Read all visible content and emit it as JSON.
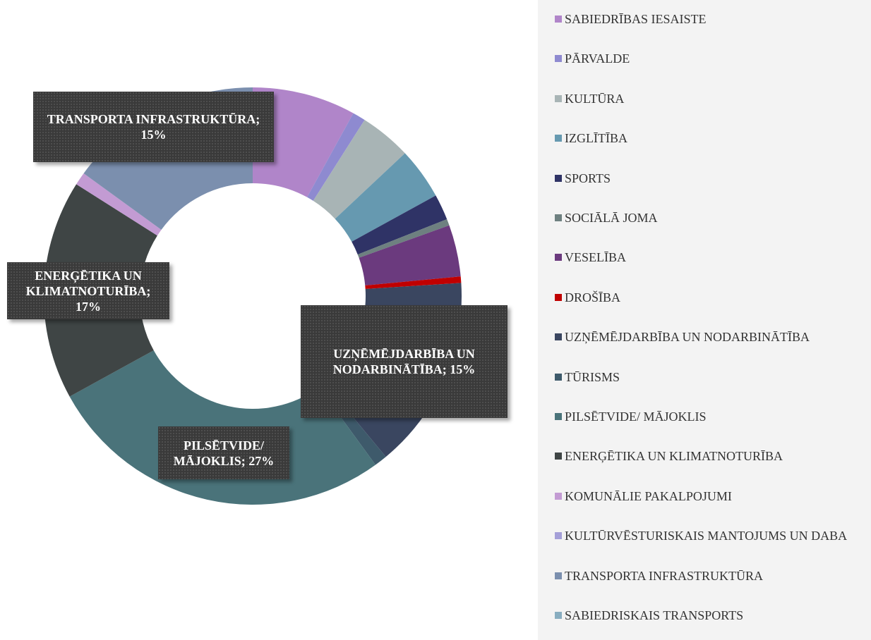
{
  "chart_data": {
    "type": "donut",
    "categories": [
      "SABIEDRĪBAS IESAISTE",
      "PĀRVALDE",
      "KULTŪRA",
      "IZGLĪTĪBA",
      "SPORTS",
      "SOCIĀLĀ JOMA",
      "VESELĪBA",
      "DROŠĪBA",
      "UZŅĒMĒJDARBĪBA UN NODARBINĀTĪBA",
      "TŪRISMS",
      "PILSĒTVIDE/ MĀJOKLIS",
      "ENERĢĒTIKA UN KLIMATNOTURĪBA",
      "KOMUNĀLIE PAKALPOJUMI",
      "KULTŪRVĒSTURISKAIS MANTOJUMS UN DABA",
      "TRANSPORTA INFRASTRUKTŪRA",
      "SABIEDRISKAIS TRANSPORTS"
    ],
    "values": [
      8,
      1,
      4,
      4,
      2,
      0.5,
      4,
      0.5,
      15,
      1,
      27,
      17,
      1,
      0,
      15,
      0
    ],
    "value_labels": [
      null,
      null,
      null,
      null,
      null,
      null,
      null,
      null,
      "UZŅĒMĒJDARBĪBA UN NODARBINĀTĪBA; 15%",
      null,
      "PILSĒTVIDE/ MĀJOKLIS; 27%",
      "ENERĢĒTIKA UN KLIMATNOTURĪBA; 17%",
      null,
      null,
      "TRANSPORTA INFRASTRUKTŪRA; 15%",
      null
    ],
    "colors": [
      "#b085c9",
      "#8e8ad0",
      "#a8b4b5",
      "#6699b0",
      "#2f3366",
      "#6e8080",
      "#6b3a7e",
      "#c00000",
      "#3a4660",
      "#3e5a6b",
      "#4a737a",
      "#3f4545",
      "#c39bd3",
      "#a49fd8",
      "#7b8fae",
      "#88adc0"
    ],
    "legend": "right"
  }
}
